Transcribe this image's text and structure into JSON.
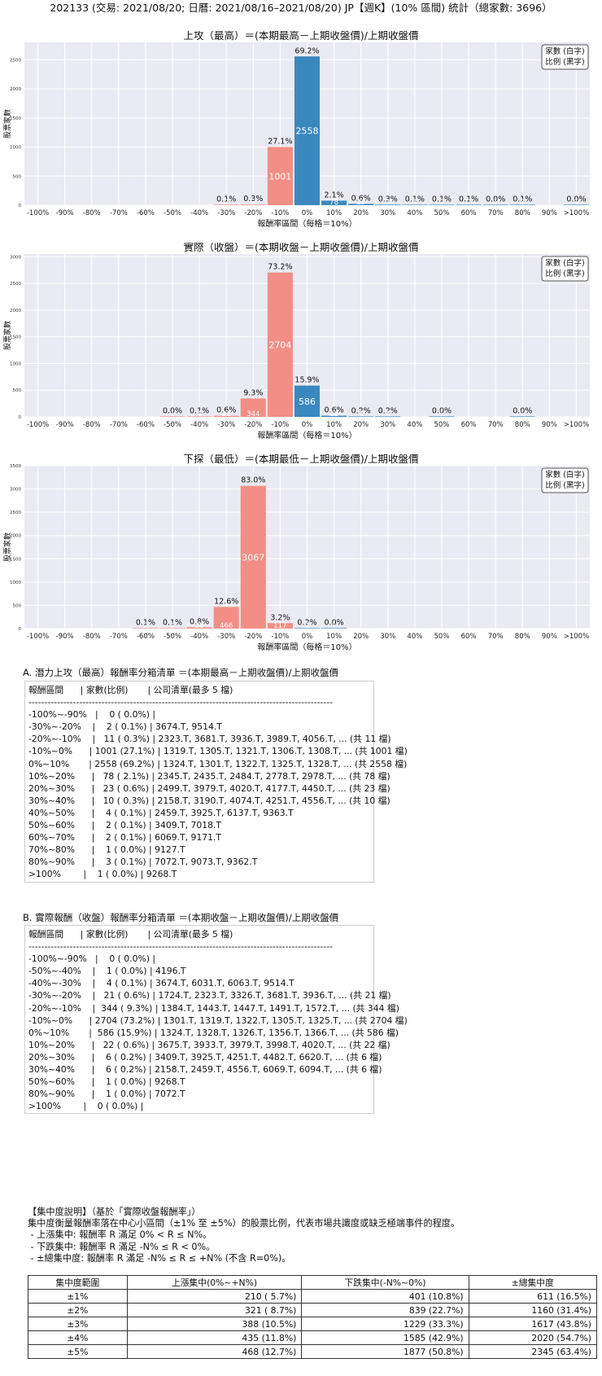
{
  "page_title": "202133 (交易: 2021/08/20; 日曆: 2021/08/16–2021/08/20) JP【週K】(10% 區間) 統計（總家數: 3696）",
  "legend_lines": [
    "家數 (白字)",
    "比例 (黑字)"
  ],
  "colors": {
    "negative_bar": "#f28e86",
    "positive_bar": "#3b88c0",
    "plot_bg": "#eaeaf2",
    "grid": "#ffffff"
  },
  "chart_data": [
    {
      "type": "bar",
      "title": "上攻（最高）＝(本期最高－上期收盤價)/上期收盤價",
      "xlabel": "報酬率區間（每格＝10%）",
      "ylabel": "股票家數",
      "categories": [
        "-100%",
        "-90%",
        "-80%",
        "-70%",
        "-60%",
        "-50%",
        "-40%",
        "-30%",
        "-20%",
        "-10%",
        "0%",
        "10%",
        "20%",
        "30%",
        "40%",
        "50%",
        "60%",
        "70%",
        "80%",
        "90%",
        ">100%"
      ],
      "yticks": [
        0,
        500,
        1000,
        1500,
        2000,
        2500
      ],
      "ylim": [
        0,
        2800
      ],
      "bins": [
        {
          "label": "-30%~-20%",
          "count": 2,
          "pct": "0.1%"
        },
        {
          "label": "-20%~-10%",
          "count": 11,
          "pct": "0.3%"
        },
        {
          "label": "-10%~0%",
          "count": 1001,
          "pct": "27.1%"
        },
        {
          "label": "0%~10%",
          "count": 2558,
          "pct": "69.2%"
        },
        {
          "label": "10%~20%",
          "count": 78,
          "pct": "2.1%"
        },
        {
          "label": "20%~30%",
          "count": 23,
          "pct": "0.6%"
        },
        {
          "label": "30%~40%",
          "count": 10,
          "pct": "0.3%"
        },
        {
          "label": "40%~50%",
          "count": 4,
          "pct": "0.1%"
        },
        {
          "label": "50%~60%",
          "count": 2,
          "pct": "0.1%"
        },
        {
          "label": "60%~70%",
          "count": 2,
          "pct": "0.1%"
        },
        {
          "label": "70%~80%",
          "count": 1,
          "pct": "0.0%"
        },
        {
          "label": "80%~90%",
          "count": 3,
          "pct": "0.1%"
        },
        {
          "label": ">100%",
          "count": 1,
          "pct": "0.0%"
        }
      ]
    },
    {
      "type": "bar",
      "title": "實際（收盤）＝(本期收盤－上期收盤價)/上期收盤價",
      "xlabel": "報酬率區間（每格＝10%）",
      "ylabel": "股票家數",
      "categories": [
        "-100%",
        "-90%",
        "-80%",
        "-70%",
        "-60%",
        "-50%",
        "-40%",
        "-30%",
        "-20%",
        "-10%",
        "0%",
        "10%",
        "20%",
        "30%",
        "40%",
        "50%",
        "60%",
        "70%",
        "80%",
        "90%",
        ">100%"
      ],
      "yticks": [
        0,
        500,
        1000,
        1500,
        2000,
        2500,
        3000
      ],
      "ylim": [
        0,
        3050
      ],
      "bins": [
        {
          "label": "-50%~-40%",
          "count": 1,
          "pct": "0.0%"
        },
        {
          "label": "-40%~-30%",
          "count": 4,
          "pct": "0.1%"
        },
        {
          "label": "-30%~-20%",
          "count": 21,
          "pct": "0.6%"
        },
        {
          "label": "-20%~-10%",
          "count": 344,
          "pct": "9.3%"
        },
        {
          "label": "-10%~0%",
          "count": 2704,
          "pct": "73.2%"
        },
        {
          "label": "0%~10%",
          "count": 586,
          "pct": "15.9%"
        },
        {
          "label": "10%~20%",
          "count": 22,
          "pct": "0.6%"
        },
        {
          "label": "20%~30%",
          "count": 6,
          "pct": "0.2%"
        },
        {
          "label": "30%~40%",
          "count": 6,
          "pct": "0.2%"
        },
        {
          "label": "50%~60%",
          "count": 1,
          "pct": "0.0%"
        },
        {
          "label": "80%~90%",
          "count": 1,
          "pct": "0.0%"
        }
      ]
    },
    {
      "type": "bar",
      "title": "下探（最低）＝(本期最低－上期收盤價)/上期收盤價",
      "xlabel": "報酬率區間（每格＝10%）",
      "ylabel": "股票家數",
      "categories": [
        "-100%",
        "-90%",
        "-80%",
        "-70%",
        "-60%",
        "-50%",
        "-40%",
        "-30%",
        "-20%",
        "-10%",
        "0%",
        "10%",
        "20%",
        "30%",
        "40%",
        "50%",
        "60%",
        "70%",
        "80%",
        "90%",
        ">100%"
      ],
      "yticks": [
        0,
        500,
        1000,
        1500,
        2000,
        2500,
        3000,
        3500
      ],
      "ylim": [
        0,
        3500
      ],
      "bins": [
        {
          "label": "-60%~-50%",
          "count": 2,
          "pct": "0.1%"
        },
        {
          "label": "-50%~-40%",
          "count": 4,
          "pct": "0.1%"
        },
        {
          "label": "-40%~-30%",
          "count": 28,
          "pct": "0.8%"
        },
        {
          "label": "-30%~-20%",
          "count": 466,
          "pct": "12.6%"
        },
        {
          "label": "-20%~-10%",
          "count": 3067,
          "pct": "83.0%"
        },
        {
          "label": "-10%~0%",
          "count": 117,
          "pct": "3.2%"
        },
        {
          "label": "0%~10%",
          "count": 9,
          "pct": "0.2%"
        },
        {
          "label": "10%~20%",
          "count": 1,
          "pct": "0.0%"
        }
      ]
    }
  ],
  "list_a": {
    "title": "A. 潛力上攻（最高）報酬率分箱清單 ＝(本期最高－上期收盤價)/上期收盤價",
    "header": "報酬區間      | 家數(比例)       | 公司清單(最多 5 檔)",
    "divider": "------------------------------------------------------------------------------------------------",
    "rows": [
      "-100%~-90%   |    0 ( 0.0%) |",
      "-30%~-20%    |    2 ( 0.1%) | 3674.T, 9514.T",
      "-20%~-10%    |   11 ( 0.3%) | 2323.T, 3681.T, 3936.T, 3989.T, 4056.T, ... (共 11 檔)",
      "-10%~0%      | 1001 (27.1%) | 1319.T, 1305.T, 1321.T, 1306.T, 1308.T, ... (共 1001 檔)",
      "0%~10%       | 2558 (69.2%) | 1324.T, 1301.T, 1322.T, 1325.T, 1328.T, ... (共 2558 檔)",
      "10%~20%      |   78 ( 2.1%) | 2345.T, 2435.T, 2484.T, 2778.T, 2978.T, ... (共 78 檔)",
      "20%~30%      |   23 ( 0.6%) | 2499.T, 3979.T, 4020.T, 4177.T, 4450.T, ... (共 23 檔)",
      "30%~40%      |   10 ( 0.3%) | 2158.T, 3190.T, 4074.T, 4251.T, 4556.T, ... (共 10 檔)",
      "40%~50%      |    4 ( 0.1%) | 2459.T, 3925.T, 6137.T, 9363.T",
      "50%~60%      |    2 ( 0.1%) | 3409.T, 7018.T",
      "60%~70%      |    2 ( 0.1%) | 6069.T, 9171.T",
      "70%~80%      |    1 ( 0.0%) | 9127.T",
      "80%~90%      |    3 ( 0.1%) | 7072.T, 9073.T, 9362.T",
      ">100%        |    1 ( 0.0%) | 9268.T"
    ]
  },
  "list_b": {
    "title": "B. 實際報酬（收盤）報酬率分箱清單 ＝(本期收盤－上期收盤價)/上期收盤價",
    "header": "報酬區間      | 家數(比例)       | 公司清單(最多 5 檔)",
    "divider": "------------------------------------------------------------------------------------------------",
    "rows": [
      "-100%~-90%   |    0 ( 0.0%) |",
      "-50%~-40%    |    1 ( 0.0%) | 4196.T",
      "-40%~-30%    |    4 ( 0.1%) | 3674.T, 6031.T, 6063.T, 9514.T",
      "-30%~-20%    |   21 ( 0.6%) | 1724.T, 2323.T, 3326.T, 3681.T, 3936.T, ... (共 21 檔)",
      "-20%~-10%    |  344 ( 9.3%) | 1384.T, 1443.T, 1447.T, 1491.T, 1572.T, ... (共 344 檔)",
      "-10%~0%      | 2704 (73.2%) | 1301.T, 1319.T, 1322.T, 1305.T, 1325.T, ... (共 2704 檔)",
      "0%~10%       |  586 (15.9%) | 1324.T, 1328.T, 1326.T, 1356.T, 1366.T, ... (共 586 檔)",
      "10%~20%      |   22 ( 0.6%) | 3675.T, 3933.T, 3979.T, 3998.T, 4020.T, ... (共 22 檔)",
      "20%~30%      |    6 ( 0.2%) | 3409.T, 3925.T, 4251.T, 4482.T, 6620.T, ... (共 6 檔)",
      "30%~40%      |    6 ( 0.2%) | 2158.T, 2459.T, 4556.T, 6069.T, 6094.T, ... (共 6 檔)",
      "50%~60%      |    1 ( 0.0%) | 9268.T",
      "80%~90%      |    1 ( 0.0%) | 7072.T",
      ">100%        |    0 ( 0.0%) |"
    ]
  },
  "concentration": {
    "lines": [
      "【集中度說明】（基於「實際收盤報酬率」）",
      "集中度衡量報酬率落在中心小區間（±1% 至 ±5%）的股票比例，代表市場共識度或缺乏極端事件的程度。",
      " - 上漲集中: 報酬率 R 滿足 0% < R ≤ N%。",
      " - 下跌集中: 報酬率 R 滿足 -N% ≤ R < 0%。",
      " - ±總集中度: 報酬率 R 滿足 -N% ≤ R ≤ +N% (不含 R=0%)。"
    ],
    "headers": [
      "集中度範圍",
      "上漲集中(0%~+N%)",
      "下跌集中(-N%~0%)",
      "±總集中度"
    ],
    "rows": [
      [
        "±1%",
        "210 ( 5.7%)",
        "401 (10.8%)",
        "611 (16.5%)"
      ],
      [
        "±2%",
        "321 ( 8.7%)",
        "839 (22.7%)",
        "1160 (31.4%)"
      ],
      [
        "±3%",
        "388 (10.5%)",
        "1229 (33.3%)",
        "1617 (43.8%)"
      ],
      [
        "±4%",
        "435 (11.8%)",
        "1585 (42.9%)",
        "2020 (54.7%)"
      ],
      [
        "±5%",
        "468 (12.7%)",
        "1877 (50.8%)",
        "2345 (63.4%)"
      ]
    ]
  }
}
